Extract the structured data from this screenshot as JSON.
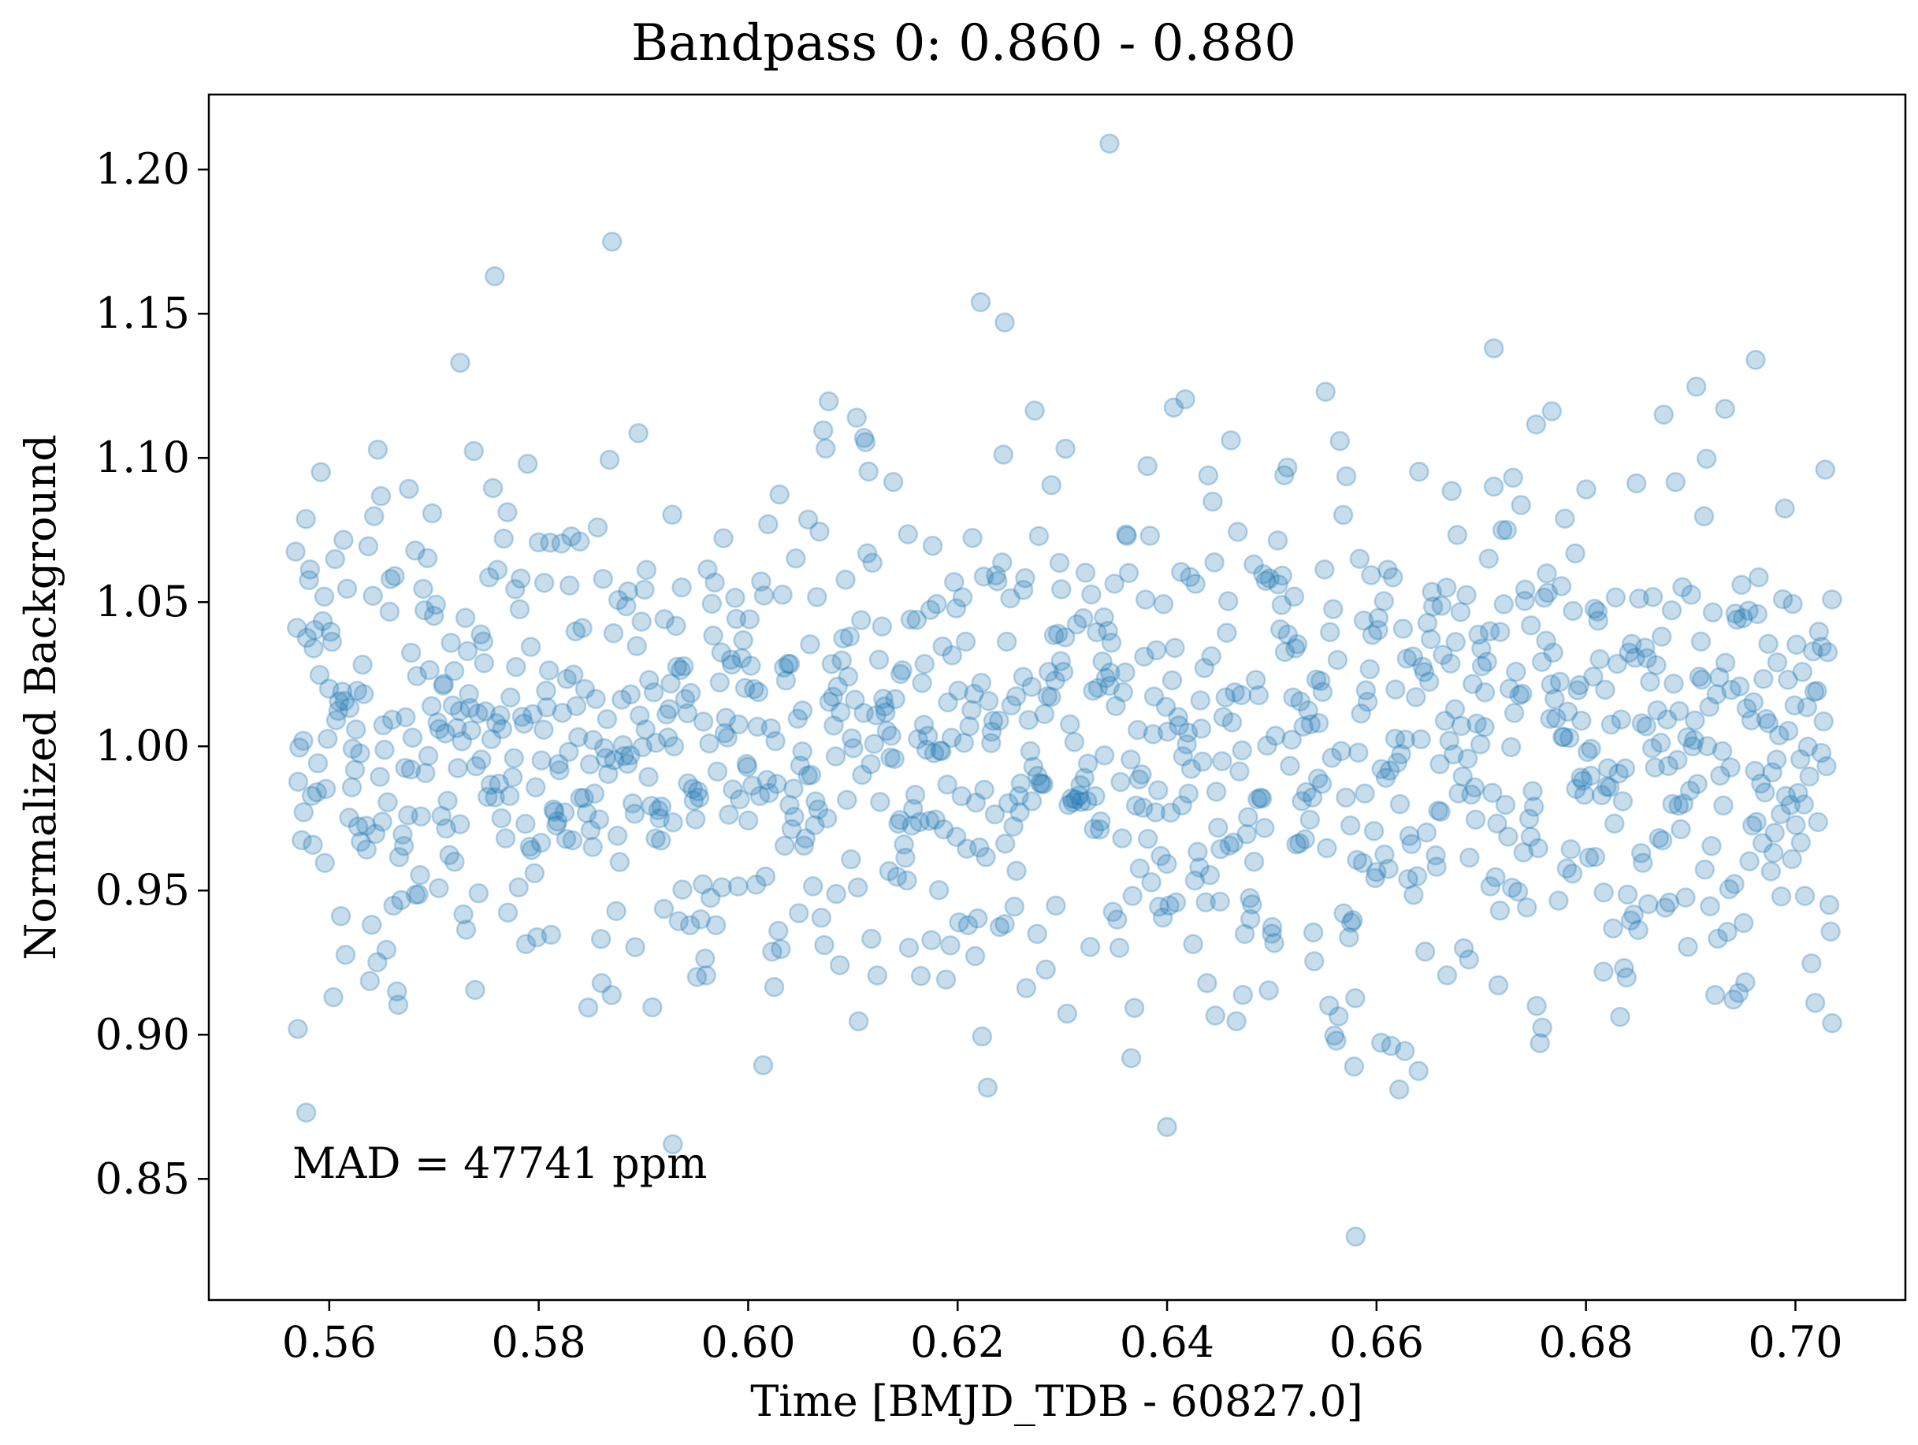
{
  "chart_data": {
    "type": "scatter",
    "title": "Bandpass 0: 0.860 - 0.880",
    "xlabel": "Time [BMJD_TDB - 60827.0]",
    "ylabel": "Normalized Background",
    "xlim": [
      0.5485,
      0.7105
    ],
    "ylim": [
      0.808,
      1.226
    ],
    "xticks": [
      0.56,
      0.58,
      0.6,
      0.62,
      0.64,
      0.66,
      0.68,
      0.7
    ],
    "xtick_labels": [
      "0.56",
      "0.58",
      "0.60",
      "0.62",
      "0.64",
      "0.66",
      "0.68",
      "0.70"
    ],
    "yticks": [
      0.85,
      0.9,
      0.95,
      1.0,
      1.05,
      1.1,
      1.15,
      1.2
    ],
    "ytick_labels": [
      "0.85",
      "0.90",
      "0.95",
      "1.00",
      "1.05",
      "1.10",
      "1.15",
      "1.20"
    ],
    "grid": false,
    "legend": null,
    "annotation": "MAD = 47741 ppm",
    "marker_color": "#1f77b4",
    "marker_alpha": 0.25,
    "n_points_approx": 1100,
    "notable_points": [
      {
        "x": 0.6345,
        "y": 1.209
      },
      {
        "x": 0.587,
        "y": 1.175
      },
      {
        "x": 0.5758,
        "y": 1.163
      },
      {
        "x": 0.6222,
        "y": 1.154
      },
      {
        "x": 0.6245,
        "y": 1.147
      },
      {
        "x": 0.6712,
        "y": 1.138
      },
      {
        "x": 0.6962,
        "y": 1.134
      },
      {
        "x": 0.5725,
        "y": 1.133
      },
      {
        "x": 0.658,
        "y": 0.83
      },
      {
        "x": 0.64,
        "y": 0.868
      },
      {
        "x": 0.5928,
        "y": 0.862
      },
      {
        "x": 0.557,
        "y": 0.902
      },
      {
        "x": 0.7035,
        "y": 0.904
      },
      {
        "x": 0.5578,
        "y": 0.873
      }
    ]
  }
}
